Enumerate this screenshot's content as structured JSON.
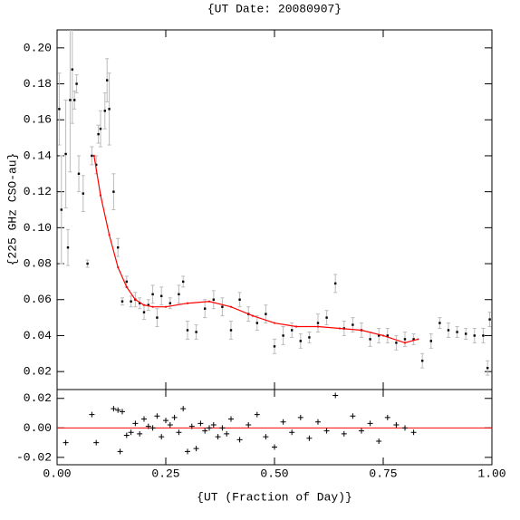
{
  "chart_data": [
    {
      "type": "scatter",
      "title": "{UT Date: 20080907}",
      "ylabel": "{225 GHz CSO-au}",
      "xlim": [
        0,
        1
      ],
      "ylim": [
        0.01,
        0.21
      ],
      "xticks": [
        0,
        0.25,
        0.5,
        0.75,
        1
      ],
      "yticks": [
        {
          "value": 0.02,
          "label": "0.02"
        },
        {
          "value": 0.04,
          "label": "0.04"
        },
        {
          "value": 0.06,
          "label": "0.06"
        },
        {
          "value": 0.08,
          "label": "0.08"
        },
        {
          "value": 0.1,
          "label": "0.10"
        },
        {
          "value": 0.12,
          "label": "0.12"
        },
        {
          "value": 0.14,
          "label": "0.14"
        },
        {
          "value": 0.16,
          "label": "0.16"
        },
        {
          "value": 0.18,
          "label": "0.18"
        },
        {
          "value": 0.2,
          "label": "0.20"
        }
      ],
      "series": [
        {
          "mode": "points",
          "color": "#000000",
          "error_color": "#bbbbbb",
          "x": [
            0.005,
            0.01,
            0.02,
            0.025,
            0.03,
            0.035,
            0.04,
            0.045,
            0.05,
            0.06,
            0.07,
            0.08,
            0.09,
            0.095,
            0.1,
            0.11,
            0.115,
            0.12,
            0.13,
            0.14,
            0.15,
            0.16,
            0.17,
            0.18,
            0.19,
            0.2,
            0.21,
            0.22,
            0.23,
            0.24,
            0.26,
            0.28,
            0.29,
            0.3,
            0.32,
            0.34,
            0.36,
            0.38,
            0.4,
            0.42,
            0.44,
            0.46,
            0.48,
            0.5,
            0.52,
            0.54,
            0.56,
            0.58,
            0.6,
            0.62,
            0.64,
            0.66,
            0.68,
            0.7,
            0.72,
            0.74,
            0.76,
            0.78,
            0.8,
            0.82,
            0.84,
            0.86,
            0.88,
            0.9,
            0.92,
            0.94,
            0.96,
            0.98,
            0.99,
            0.995
          ],
          "values": [
            0.166,
            0.11,
            0.141,
            0.089,
            0.171,
            0.188,
            0.171,
            0.18,
            0.13,
            0.119,
            0.08,
            0.14,
            0.135,
            0.152,
            0.155,
            0.165,
            0.182,
            0.166,
            0.12,
            0.089,
            0.059,
            0.07,
            0.059,
            0.06,
            0.058,
            0.053,
            0.057,
            0.063,
            0.05,
            0.062,
            0.058,
            0.063,
            0.07,
            0.043,
            0.042,
            0.055,
            0.06,
            0.056,
            0.043,
            0.06,
            0.052,
            0.047,
            0.052,
            0.034,
            0.04,
            0.043,
            0.037,
            0.039,
            0.047,
            0.05,
            0.069,
            0.044,
            0.046,
            0.043,
            0.038,
            0.04,
            0.04,
            0.036,
            0.038,
            0.038,
            0.026,
            0.037,
            0.047,
            0.043,
            0.042,
            0.041,
            0.04,
            0.04,
            0.022,
            0.049
          ],
          "errors": [
            0.02,
            0.03,
            0.03,
            0.01,
            0.04,
            0.03,
            0.005,
            0.005,
            0.01,
            0.01,
            0.002,
            0.005,
            0.005,
            0.005,
            0.01,
            0.01,
            0.012,
            0.02,
            0.01,
            0.005,
            0.002,
            0.003,
            0.003,
            0.004,
            0.003,
            0.004,
            0.003,
            0.005,
            0.005,
            0.005,
            0.003,
            0.005,
            0.003,
            0.005,
            0.004,
            0.005,
            0.005,
            0.005,
            0.005,
            0.004,
            0.004,
            0.004,
            0.005,
            0.004,
            0.005,
            0.004,
            0.004,
            0.003,
            0.005,
            0.004,
            0.005,
            0.004,
            0.004,
            0.004,
            0.004,
            0.004,
            0.004,
            0.004,
            0.004,
            0.003,
            0.004,
            0.004,
            0.003,
            0.004,
            0.003,
            0.003,
            0.004,
            0.004,
            0.004,
            0.004
          ]
        },
        {
          "mode": "line",
          "color": "#ff0000",
          "x": [
            0.085,
            0.1,
            0.12,
            0.14,
            0.16,
            0.18,
            0.2,
            0.22,
            0.25,
            0.3,
            0.35,
            0.4,
            0.45,
            0.5,
            0.55,
            0.6,
            0.65,
            0.7,
            0.75,
            0.8,
            0.83
          ],
          "values": [
            0.14,
            0.118,
            0.096,
            0.078,
            0.067,
            0.06,
            0.057,
            0.056,
            0.056,
            0.058,
            0.059,
            0.056,
            0.051,
            0.047,
            0.045,
            0.045,
            0.044,
            0.043,
            0.04,
            0.036,
            0.038
          ]
        }
      ]
    },
    {
      "type": "scatter",
      "xlabel": "{UT (Fraction of Day)}",
      "xlim": [
        0,
        1
      ],
      "ylim": [
        -0.025,
        0.026
      ],
      "zero_color": "#ff0000",
      "xticks": [
        {
          "value": 0,
          "label": "0.00"
        },
        {
          "value": 0.25,
          "label": "0.25"
        },
        {
          "value": 0.5,
          "label": "0.50"
        },
        {
          "value": 0.75,
          "label": "0.75"
        },
        {
          "value": 1,
          "label": "1.00"
        }
      ],
      "yticks": [
        {
          "value": -0.02,
          "label": "-0.02"
        },
        {
          "value": 0,
          "label": "0.00"
        },
        {
          "value": 0.02,
          "label": "0.02"
        }
      ],
      "series": [
        {
          "mode": "plus",
          "color": "#000000",
          "x": [
            0.02,
            0.08,
            0.09,
            0.13,
            0.14,
            0.145,
            0.15,
            0.16,
            0.17,
            0.18,
            0.19,
            0.2,
            0.21,
            0.22,
            0.23,
            0.24,
            0.25,
            0.26,
            0.27,
            0.28,
            0.29,
            0.3,
            0.31,
            0.32,
            0.33,
            0.34,
            0.35,
            0.36,
            0.37,
            0.38,
            0.39,
            0.4,
            0.42,
            0.44,
            0.46,
            0.48,
            0.5,
            0.52,
            0.54,
            0.56,
            0.58,
            0.6,
            0.62,
            0.64,
            0.66,
            0.68,
            0.7,
            0.72,
            0.74,
            0.76,
            0.78,
            0.8,
            0.82
          ],
          "values": [
            -0.01,
            0.009,
            -0.01,
            0.013,
            0.012,
            -0.016,
            0.011,
            -0.005,
            -0.003,
            0.003,
            -0.004,
            0.006,
            0.001,
            0,
            0.008,
            -0.006,
            0.005,
            0.002,
            0.007,
            -0.003,
            0.013,
            -0.016,
            0.001,
            -0.014,
            0.003,
            -0.002,
            0,
            0.002,
            -0.006,
            0,
            -0.004,
            0.006,
            -0.008,
            0.002,
            0.009,
            -0.006,
            -0.013,
            0.004,
            -0.003,
            0.007,
            -0.007,
            0.004,
            -0.002,
            0.022,
            -0.004,
            0.008,
            -0.002,
            0.003,
            -0.009,
            0.007,
            0.002,
            0,
            -0.003
          ]
        }
      ]
    }
  ]
}
